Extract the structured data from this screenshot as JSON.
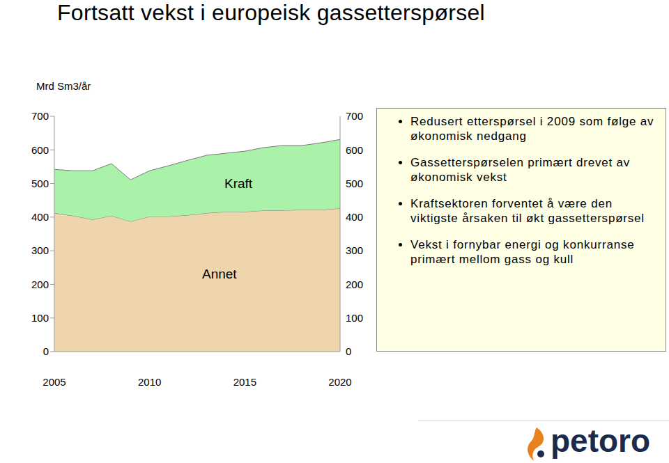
{
  "chart_data": {
    "type": "area",
    "title": "Fortsatt vekst i europeisk gassetterspørsel",
    "y_label": "Mrd Sm3/år",
    "x": [
      2005,
      2006,
      2007,
      2008,
      2009,
      2010,
      2011,
      2012,
      2013,
      2014,
      2015,
      2016,
      2017,
      2018,
      2019,
      2020
    ],
    "xlim": [
      2005,
      2020
    ],
    "xticks": [
      2005,
      2010,
      2015,
      2020
    ],
    "ylim": [
      0,
      700
    ],
    "yticks": [
      0,
      100,
      200,
      300,
      400,
      500,
      600,
      700
    ],
    "y2lim": [
      0,
      700
    ],
    "y2ticks": [
      0,
      100,
      200,
      300,
      400,
      500,
      600,
      700
    ],
    "stacked": true,
    "grid": false,
    "series": [
      {
        "name": "Annet",
        "color": "#EFD5AC",
        "values": [
          412,
          404,
          393,
          404,
          387,
          402,
          402,
          406,
          412,
          416,
          416,
          420,
          420,
          422,
          422,
          426
        ]
      },
      {
        "name": "Kraft",
        "color": "#AAF2AA",
        "values": [
          130,
          134,
          145,
          155,
          124,
          136,
          151,
          163,
          172,
          174,
          180,
          187,
          193,
          191,
          199,
          205
        ]
      }
    ],
    "annotations": [
      "Redusert etterspørsel i 2009 som følge av økonomisk nedgang",
      "Gassetterspørselen primært drevet av økonomisk vekst",
      "Kraftsektoren forventet å være den viktigste årsaken til økt gassetterspørsel",
      "Vekst i fornybar energi og konkurranse primært mellom gass og kull"
    ],
    "logo": "petoro"
  }
}
